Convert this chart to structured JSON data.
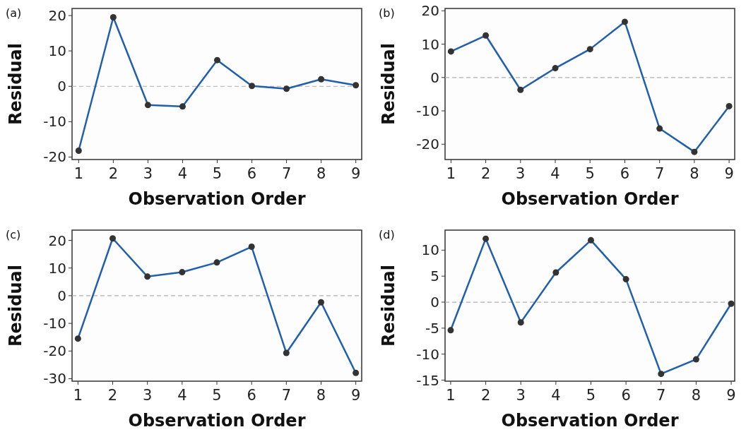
{
  "chart_data": [
    {
      "type": "line",
      "title": "(a)",
      "xlabel": "Observation Order",
      "ylabel": "Residual",
      "x": [
        1,
        2,
        3,
        4,
        5,
        6,
        7,
        8,
        9
      ],
      "xlim": [
        0.81,
        9.17
      ],
      "xticks": [
        1,
        2,
        3,
        4,
        5,
        6,
        7,
        8,
        9
      ],
      "ylim": [
        -20.7,
        22
      ],
      "yticks": [
        -20,
        -10,
        0,
        10,
        20
      ],
      "marker": "circle",
      "line_style": "solid",
      "grid": false,
      "ref_lines": [
        {
          "axis": "y",
          "value": 0,
          "color": "#b0b0b0",
          "line_style": "dashed"
        }
      ],
      "series": [
        {
          "color": "#1f5fad",
          "values": [
            -18.2,
            19.5,
            -5.3,
            -5.7,
            7.4,
            0.1,
            -0.7,
            2.0,
            0.3
          ]
        }
      ]
    },
    {
      "type": "line",
      "title": "(b)",
      "xlabel": "Observation Order",
      "ylabel": "Residual",
      "x": [
        1,
        2,
        3,
        4,
        5,
        6,
        7,
        8,
        9
      ],
      "xlim": [
        0.83,
        9.16
      ],
      "xticks": [
        1,
        2,
        3,
        4,
        5,
        6,
        7,
        8,
        9
      ],
      "ylim": [
        -24.6,
        20.7
      ],
      "yticks": [
        -20,
        -10,
        0,
        10,
        20
      ],
      "marker": "circle",
      "line_style": "solid",
      "grid": false,
      "ref_lines": [
        {
          "axis": "y",
          "value": 0,
          "color": "#b0b0b0",
          "line_style": "dashed"
        }
      ],
      "series": [
        {
          "color": "#1f5fad",
          "values": [
            7.8,
            12.6,
            -3.7,
            2.8,
            8.5,
            16.7,
            -15.3,
            -22.3,
            -8.6
          ]
        }
      ]
    },
    {
      "type": "line",
      "title": "(c)",
      "xlabel": "Observation Order",
      "ylabel": "Residual",
      "x": [
        1,
        2,
        3,
        4,
        5,
        6,
        7,
        8,
        9
      ],
      "xlim": [
        0.83,
        9.17
      ],
      "xticks": [
        1,
        2,
        3,
        4,
        5,
        6,
        7,
        8,
        9
      ],
      "ylim": [
        -30.9,
        23.7
      ],
      "yticks": [
        -30,
        -20,
        -10,
        0,
        10,
        20
      ],
      "marker": "circle",
      "line_style": "solid",
      "grid": false,
      "ref_lines": [
        {
          "axis": "y",
          "value": 0,
          "color": "#b0b0b0",
          "line_style": "dashed"
        }
      ],
      "series": [
        {
          "color": "#1f5fad",
          "values": [
            -15.5,
            20.7,
            6.9,
            8.5,
            12.0,
            17.7,
            -20.7,
            -2.4,
            -27.9
          ]
        }
      ]
    },
    {
      "type": "line",
      "title": "(d)",
      "xlabel": "Observation Order",
      "ylabel": "Residual",
      "x": [
        1,
        2,
        3,
        4,
        5,
        6,
        7,
        8,
        9
      ],
      "xlim": [
        0.84,
        9.1
      ],
      "xticks": [
        1,
        2,
        3,
        4,
        5,
        6,
        7,
        8,
        9
      ],
      "ylim": [
        -15.2,
        13.85
      ],
      "yticks": [
        -15,
        -10,
        -5,
        0,
        5,
        10
      ],
      "marker": "circle",
      "line_style": "solid",
      "grid": false,
      "ref_lines": [
        {
          "axis": "y",
          "value": 0,
          "color": "#b0b0b0",
          "line_style": "dashed"
        }
      ],
      "series": [
        {
          "color": "#1f5fad",
          "values": [
            -5.4,
            12.2,
            -3.9,
            5.7,
            11.9,
            4.4,
            -13.8,
            -11.0,
            -0.3
          ]
        }
      ]
    }
  ]
}
